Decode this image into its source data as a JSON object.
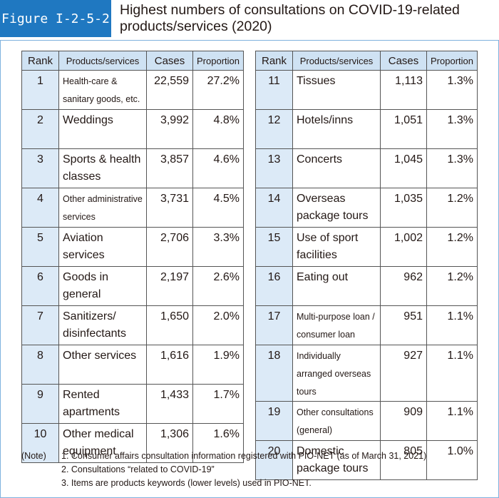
{
  "header": {
    "figure": "Figure I-2-5-2",
    "title": "Highest numbers of consultations on COVID-19-related products/services (2020)"
  },
  "tables": [
    {
      "columns": [
        "Rank",
        "Products/services",
        "Cases",
        "Proportion"
      ],
      "rows": [
        [
          "1",
          "Health-care & sanitary goods, etc.",
          "22,559",
          "27.2%"
        ],
        [
          "2",
          "Weddings",
          "3,992",
          "4.8%"
        ],
        [
          "3",
          "Sports & health classes",
          "3,857",
          "4.6%"
        ],
        [
          "4",
          "Other administrative services",
          "3,731",
          "4.5%"
        ],
        [
          "5",
          "Aviation services",
          "2,706",
          "3.3%"
        ],
        [
          "6",
          "Goods in general",
          "2,197",
          "2.6%"
        ],
        [
          "7",
          "Sanitizers/ disinfectants",
          "1,650",
          "2.0%"
        ],
        [
          "8",
          "Other services",
          "1,616",
          "1.9%"
        ],
        [
          "9",
          "Rented apartments",
          "1,433",
          "1.7%"
        ],
        [
          "10",
          "Other medical equipment",
          "1,306",
          "1.6%"
        ]
      ]
    },
    {
      "columns": [
        "Rank",
        "Products/services",
        "Cases",
        "Proportion"
      ],
      "rows": [
        [
          "11",
          "Tissues",
          "1,113",
          "1.3%"
        ],
        [
          "12",
          "Hotels/inns",
          "1,051",
          "1.3%"
        ],
        [
          "13",
          "Concerts",
          "1,045",
          "1.3%"
        ],
        [
          "14",
          "Overseas package tours",
          "1,035",
          "1.2%"
        ],
        [
          "15",
          "Use of sport facilities",
          "1,002",
          "1.2%"
        ],
        [
          "16",
          "Eating out",
          "962",
          "1.2%"
        ],
        [
          "17",
          "Multi-purpose loan / consumer loan",
          "951",
          "1.1%"
        ],
        [
          "18",
          "Individually arranged overseas tours",
          "927",
          "1.1%"
        ],
        [
          "19",
          "Other consultations (general)",
          "909",
          "1.1%"
        ],
        [
          "20",
          "Domestic package tours",
          "805",
          "1.0%"
        ]
      ]
    }
  ],
  "notes": {
    "label": "(Note)",
    "items": [
      "1. Consumer affairs consultation information registered with PIO-NET (as of March 31, 2021)",
      "2. Consultations “related to COVID-19”",
      "3. Items are products keywords (lower levels) used in PIO-NET."
    ]
  }
}
